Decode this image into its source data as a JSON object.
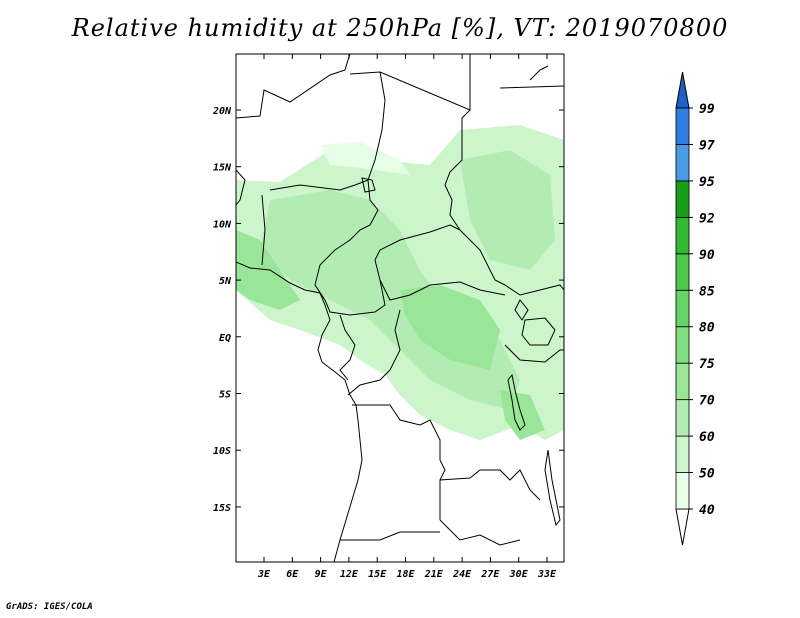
{
  "title": "Relative humidity at 250hPa [%], VT: 2019070800",
  "credit": "GrADS: IGES/COLA",
  "map": {
    "lat_ticks": [
      "20N",
      "15N",
      "10N",
      "5N",
      "EQ",
      "5S",
      "10S",
      "15S"
    ],
    "lon_ticks": [
      "3E",
      "6E",
      "9E",
      "12E",
      "15E",
      "18E",
      "21E",
      "24E",
      "27E",
      "30E",
      "33E"
    ]
  },
  "legend": {
    "levels": [
      "40",
      "50",
      "60",
      "70",
      "75",
      "80",
      "85",
      "90",
      "92",
      "95",
      "97",
      "99"
    ],
    "colors": [
      "#ffffff",
      "#e6ffe6",
      "#ccf5cc",
      "#b3ecb3",
      "#99e699",
      "#80dd80",
      "#66d466",
      "#4cc84c",
      "#33b833",
      "#1a9e1a",
      "#4a9ae8",
      "#2f7fe0",
      "#1f5fc8"
    ]
  }
}
